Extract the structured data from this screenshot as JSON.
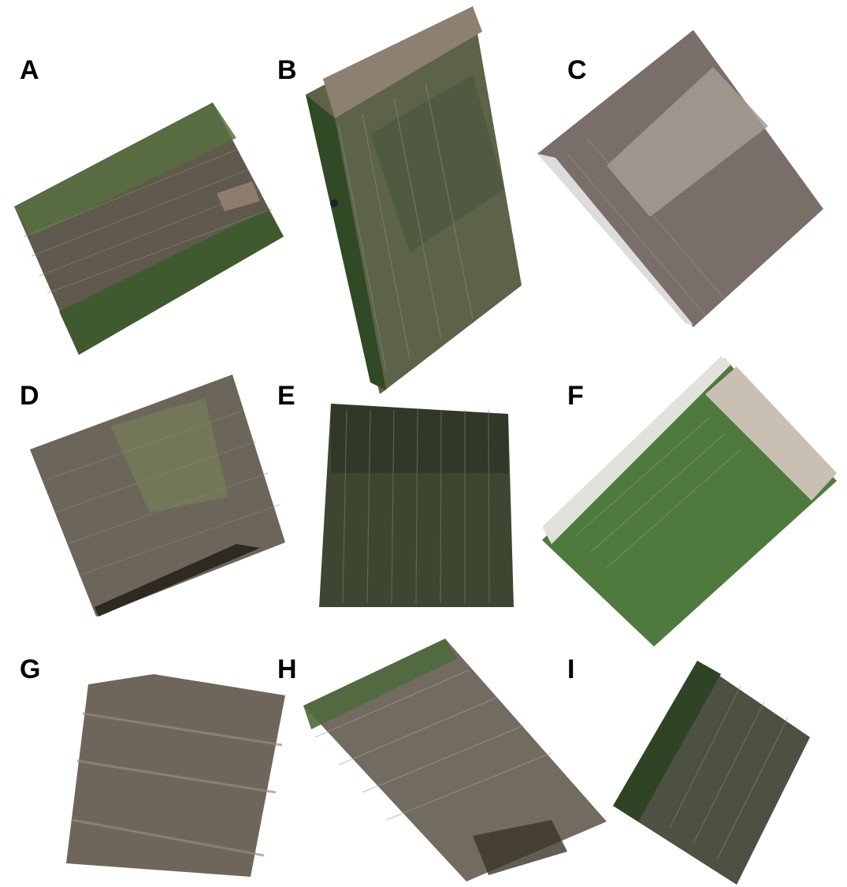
{
  "panels": [
    {
      "id": "A",
      "label": "A",
      "tone": "#5f5a4d",
      "edge": "#3f5a2e"
    },
    {
      "id": "B",
      "label": "B",
      "tone": "#5c6348",
      "edge": "#3d5a2c"
    },
    {
      "id": "C",
      "label": "C",
      "tone": "#7a6f68",
      "edge": "#9c9288"
    },
    {
      "id": "D",
      "label": "D",
      "tone": "#6b6659",
      "edge": "#4c4a3c"
    },
    {
      "id": "E",
      "label": "E",
      "tone": "#3e4632",
      "edge": "#2b3322"
    },
    {
      "id": "F",
      "label": "F",
      "tone": "#4f7a3e",
      "edge": "#c9bfb2"
    },
    {
      "id": "G",
      "label": "G",
      "tone": "#6e665a",
      "edge": "#8a7a62"
    },
    {
      "id": "H",
      "label": "H",
      "tone": "#726b5f",
      "edge": "#3f5a2e"
    },
    {
      "id": "I",
      "label": "I",
      "tone": "#4d5141",
      "edge": "#2f4424"
    }
  ]
}
